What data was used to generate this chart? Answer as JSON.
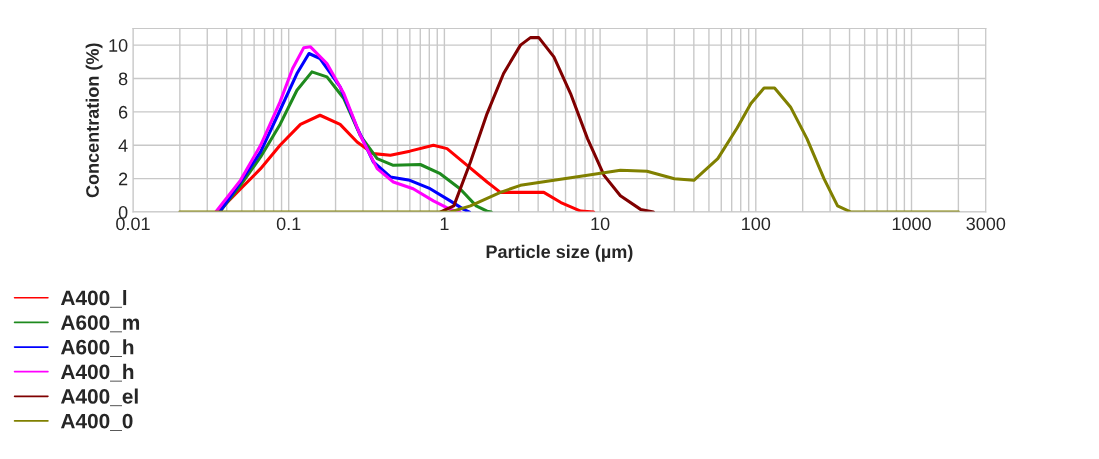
{
  "chart_data": {
    "type": "line",
    "xlabel": "Particle size (µm)",
    "ylabel": "Concentration (%)",
    "log": "x",
    "xlim": [
      0.01,
      3000
    ],
    "xticks": [
      0.01,
      0.1,
      1,
      10,
      100,
      1000,
      3000
    ],
    "ylim": [
      0,
      11
    ],
    "yticks": [
      0,
      2,
      4,
      6,
      8,
      10
    ],
    "grid": true,
    "legend": "bottom",
    "marker": "none",
    "line_style": "solid",
    "series": [
      {
        "name": "A400_l",
        "color": "#ff0000",
        "x": [
          0.035,
          0.049,
          0.066,
          0.088,
          0.119,
          0.159,
          0.214,
          0.275,
          0.35,
          0.45,
          0.6,
          0.85,
          1.04,
          1.4,
          1.88,
          2.29,
          3.08,
          4.35,
          5.6,
          7.5,
          9.1
        ],
        "values": [
          0,
          1.38,
          2.6,
          4.0,
          5.25,
          5.8,
          5.25,
          4.2,
          3.5,
          3.4,
          3.65,
          4.0,
          3.8,
          2.8,
          1.8,
          1.18,
          1.18,
          1.18,
          0.57,
          0.06,
          0
        ]
      },
      {
        "name": "A600_m",
        "color": "#1e8a1e",
        "x": [
          0.036,
          0.049,
          0.066,
          0.088,
          0.113,
          0.141,
          0.176,
          0.226,
          0.288,
          0.37,
          0.47,
          0.7,
          0.94,
          1.26,
          1.6,
          1.88,
          2.0
        ],
        "values": [
          0,
          1.6,
          3.3,
          5.25,
          7.3,
          8.4,
          8.1,
          6.8,
          4.6,
          3.2,
          2.8,
          2.85,
          2.3,
          1.4,
          0.37,
          0.05,
          0
        ]
      },
      {
        "name": "A600_h",
        "color": "#0000ff",
        "x": [
          0.036,
          0.049,
          0.066,
          0.088,
          0.113,
          0.135,
          0.159,
          0.214,
          0.275,
          0.35,
          0.45,
          0.6,
          0.81,
          1.09,
          1.33,
          1.45
        ],
        "values": [
          0,
          1.8,
          3.6,
          6.1,
          8.3,
          9.5,
          9.2,
          7.5,
          5.05,
          3.0,
          2.1,
          1.9,
          1.4,
          0.67,
          0.16,
          0
        ]
      },
      {
        "name": "A400_h",
        "color": "#ff00ff",
        "x": [
          0.034,
          0.049,
          0.066,
          0.088,
          0.106,
          0.125,
          0.138,
          0.176,
          0.226,
          0.288,
          0.37,
          0.47,
          0.63,
          0.85,
          1.09,
          1.26
        ],
        "values": [
          0,
          1.9,
          4.0,
          6.6,
          8.6,
          9.85,
          9.9,
          8.9,
          7.1,
          4.6,
          2.6,
          1.8,
          1.4,
          0.67,
          0.16,
          0
        ]
      },
      {
        "name": "A400_el",
        "color": "#800000",
        "x": [
          0.94,
          1.15,
          1.47,
          1.88,
          2.4,
          3.08,
          3.57,
          4.04,
          5.05,
          6.46,
          8.3,
          10.6,
          13.5,
          18.2,
          22
        ],
        "values": [
          0,
          0.37,
          3.0,
          5.9,
          8.3,
          10.0,
          10.45,
          10.45,
          9.3,
          7.1,
          4.4,
          2.2,
          0.98,
          0.16,
          0
        ]
      },
      {
        "name": "A400_0",
        "color": "#808000",
        "x": [
          0.02,
          1.09,
          1.47,
          2.29,
          3.08,
          5.05,
          8.3,
          13.5,
          20,
          30,
          40,
          57,
          76,
          93,
          113,
          132,
          167,
          213,
          274,
          335,
          409,
          2000
        ],
        "values": [
          0,
          0,
          0.37,
          1.18,
          1.6,
          1.9,
          2.2,
          2.5,
          2.45,
          2.0,
          1.9,
          3.2,
          5.05,
          6.5,
          7.43,
          7.43,
          6.3,
          4.4,
          2.0,
          0.37,
          0,
          0
        ]
      }
    ]
  }
}
